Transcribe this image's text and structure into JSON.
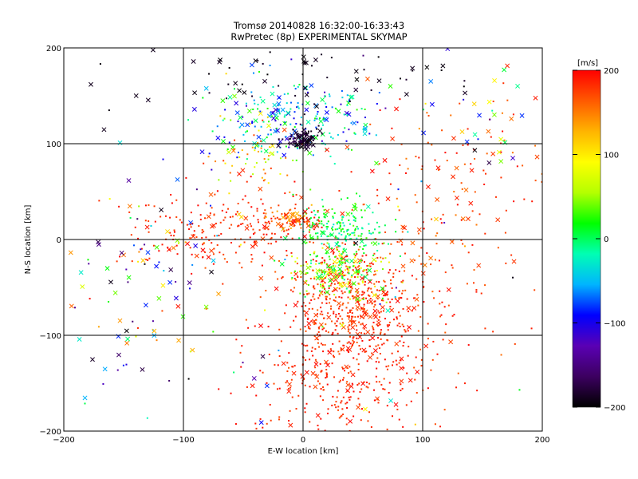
{
  "chart_data": {
    "type": "scatter",
    "title": "Tromsø 20140828 16:32:00-16:33:43",
    "subtitle": "RwPretec (8p) EXPERIMENTAL SKYMAP",
    "xlabel": "E-W location [km]",
    "ylabel": "N-S location [km]",
    "xlim": [
      -200,
      200
    ],
    "ylim": [
      -200,
      200
    ],
    "x_ticks": [
      -200,
      -100,
      0,
      100,
      200
    ],
    "y_ticks": [
      -200,
      -100,
      0,
      100,
      200
    ],
    "x_tick_labels": [
      "−200",
      "−100",
      "0",
      "100",
      "200"
    ],
    "y_tick_labels": [
      "−200",
      "−100",
      "0",
      "100",
      "200"
    ],
    "grid": true,
    "grid_lines": [
      -100,
      0,
      100
    ],
    "colorbar": {
      "label": "[m/s]",
      "range": [
        -200,
        200
      ],
      "ticks": [
        200,
        100,
        0,
        -100,
        -200
      ],
      "tick_labels": [
        "200",
        "100",
        "0",
        "−100",
        "−200"
      ],
      "colors": [
        "#000000",
        "#3c0060",
        "#5a00b4",
        "#0000ff",
        "#00b4ff",
        "#00ffb4",
        "#00ff00",
        "#b4ff00",
        "#ffff00",
        "#ffb400",
        "#ff5a00",
        "#ff0000"
      ]
    },
    "marker_types": [
      "dot",
      "cross"
    ],
    "clusters": [
      {
        "cx": 40,
        "cy": -65,
        "sx": 30,
        "sy": 28,
        "n": 520,
        "vmin": 160,
        "vmax": 200,
        "cross_frac": 0.12
      },
      {
        "cx": 30,
        "cy": -150,
        "sx": 35,
        "sy": 35,
        "n": 280,
        "vmin": 170,
        "vmax": 200,
        "cross_frac": 0.12
      },
      {
        "cx": -60,
        "cy": 10,
        "sx": 45,
        "sy": 20,
        "n": 220,
        "vmin": 170,
        "vmax": 200,
        "cross_frac": 0.1
      },
      {
        "cx": 30,
        "cy": -35,
        "sx": 18,
        "sy": 12,
        "n": 180,
        "vmin": -10,
        "vmax": 110,
        "cross_frac": 0.15
      },
      {
        "cx": 30,
        "cy": 10,
        "sx": 18,
        "sy": 14,
        "n": 200,
        "vmin": -30,
        "vmax": 40,
        "cross_frac": 0.1
      },
      {
        "cx": -10,
        "cy": 22,
        "sx": 12,
        "sy": 5,
        "n": 80,
        "vmin": 120,
        "vmax": 200,
        "cross_frac": 0.3
      },
      {
        "cx": -10,
        "cy": 125,
        "sx": 35,
        "sy": 20,
        "n": 240,
        "vmin": -120,
        "vmax": 30,
        "cross_frac": 0.2
      },
      {
        "cx": 0,
        "cy": 105,
        "sx": 6,
        "sy": 6,
        "n": 90,
        "vmin": -200,
        "vmax": -170,
        "cross_frac": 0.4
      },
      {
        "cx": 0,
        "cy": 170,
        "sx": 80,
        "sy": 20,
        "n": 70,
        "vmin": -200,
        "vmax": -180,
        "cross_frac": 0.6
      },
      {
        "cx": -45,
        "cy": 80,
        "sx": 25,
        "sy": 25,
        "n": 70,
        "vmin": 40,
        "vmax": 200,
        "cross_frac": 0.2
      },
      {
        "cx": 120,
        "cy": 60,
        "sx": 50,
        "sy": 50,
        "n": 140,
        "vmin": 150,
        "vmax": 200,
        "cross_frac": 0.25
      },
      {
        "cx": 150,
        "cy": 120,
        "sx": 40,
        "sy": 40,
        "n": 40,
        "vmin": -200,
        "vmax": 200,
        "cross_frac": 0.6
      },
      {
        "cx": -130,
        "cy": -40,
        "sx": 40,
        "sy": 60,
        "n": 90,
        "vmin": -200,
        "vmax": 200,
        "cross_frac": 0.5
      },
      {
        "cx": 100,
        "cy": -60,
        "sx": 40,
        "sy": 60,
        "n": 90,
        "vmin": 150,
        "vmax": 200,
        "cross_frac": 0.2
      },
      {
        "cx": 0,
        "cy": 0,
        "sx": 150,
        "sy": 150,
        "n": 120,
        "vmin": -200,
        "vmax": 200,
        "cross_frac": 0.35
      }
    ]
  }
}
